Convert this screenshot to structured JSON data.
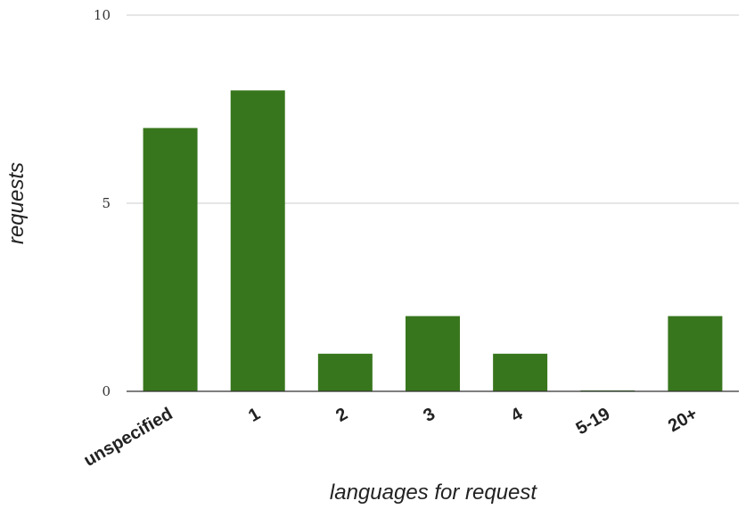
{
  "chart_data": {
    "type": "bar",
    "categories": [
      "unspecified",
      "1",
      "2",
      "3",
      "4",
      "5-19",
      "20+"
    ],
    "values": [
      7,
      8,
      1,
      2,
      1,
      0,
      2
    ],
    "xlabel": "languages for request",
    "ylabel": "requests",
    "ylim": [
      0,
      10
    ],
    "yticks": [
      0,
      5,
      10
    ],
    "grid": true,
    "bar_color": "#38761d"
  }
}
